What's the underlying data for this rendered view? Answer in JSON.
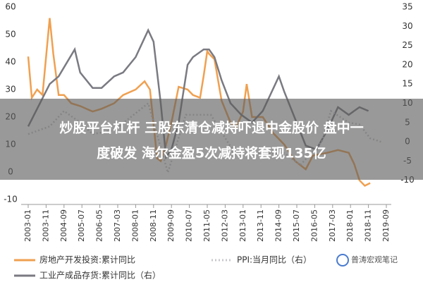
{
  "chart_data": {
    "type": "line",
    "xlim": [
      "2003-01",
      "2019-09"
    ],
    "xticks": [
      "2003-01",
      "2003-11",
      "2004-09",
      "2005-07",
      "2006-05",
      "2007-03",
      "2008-01",
      "2008-11",
      "2009-09",
      "2010-07",
      "2011-05",
      "2012-03",
      "2013-01",
      "2013-11",
      "2014-09",
      "2015-07",
      "2016-05",
      "2017-03",
      "2018-01",
      "2018-11",
      "2019-09"
    ],
    "ylim": [
      -10,
      60
    ],
    "yticks": [
      -10,
      0,
      10,
      20,
      30,
      40,
      50,
      60
    ],
    "y2lim": [
      -15,
      35
    ],
    "y2ticks": [
      -10,
      -5,
      0,
      5,
      10,
      15,
      20,
      25,
      30,
      35
    ],
    "series": [
      {
        "name": "房地产开发投资:累计同比",
        "color": "#f0a050",
        "axis": "y",
        "x": [
          "2003-01",
          "2003-03",
          "2003-06",
          "2003-09",
          "2004-01",
          "2004-03",
          "2004-06",
          "2004-09",
          "2005-01",
          "2005-06",
          "2006-01",
          "2006-06",
          "2007-01",
          "2007-06",
          "2008-01",
          "2008-06",
          "2008-09",
          "2009-01",
          "2009-03",
          "2009-06",
          "2009-09",
          "2010-01",
          "2010-06",
          "2010-09",
          "2011-01",
          "2011-03",
          "2011-05",
          "2011-06",
          "2011-09",
          "2012-01",
          "2012-06",
          "2012-09",
          "2013-01",
          "2013-03",
          "2013-06",
          "2013-12",
          "2014-06",
          "2014-12",
          "2015-06",
          "2015-12",
          "2016-04",
          "2016-12",
          "2017-06",
          "2017-12",
          "2018-03",
          "2018-06",
          "2018-09",
          "2018-12"
        ],
        "values": [
          42,
          27,
          30,
          28,
          56,
          43,
          28,
          28,
          25,
          24,
          22,
          23,
          25,
          28,
          30,
          33,
          30,
          5,
          4,
          10,
          18,
          31,
          30,
          28,
          27,
          35,
          44,
          43,
          41,
          26,
          18,
          16,
          22,
          32,
          20,
          20,
          14,
          10,
          4,
          1,
          6,
          7,
          8,
          7,
          3,
          -3,
          -5,
          -4
        ]
      },
      {
        "name": "工业产成品存货:累计同比（右）",
        "color": "#7a7a82",
        "axis": "y2",
        "x": [
          "2003-01",
          "2004-01",
          "2004-06",
          "2005-03",
          "2005-06",
          "2006-01",
          "2006-06",
          "2007-01",
          "2007-06",
          "2008-01",
          "2008-06",
          "2008-08",
          "2008-11",
          "2009-03",
          "2009-06",
          "2009-09",
          "2010-01",
          "2010-06",
          "2010-09",
          "2011-03",
          "2011-06",
          "2011-09",
          "2012-01",
          "2012-06",
          "2012-12",
          "2013-06",
          "2013-12",
          "2014-06",
          "2014-09",
          "2014-12",
          "2015-06",
          "2015-12",
          "2016-06",
          "2016-12",
          "2017-06",
          "2017-12",
          "2018-03",
          "2018-06",
          "2018-11"
        ],
        "values": [
          4,
          15,
          17,
          24,
          18,
          14,
          14,
          17,
          18,
          22,
          27,
          29,
          26,
          10,
          -4,
          -2,
          5,
          20,
          22,
          24,
          24,
          22,
          16,
          10,
          7,
          5,
          8,
          14,
          17,
          13,
          6,
          -1,
          -2,
          3,
          9,
          7,
          8,
          9,
          8
        ]
      },
      {
        "name": "PPI:当月同比（右）",
        "color": "#c8c8cc",
        "axis": "y2",
        "dash": "2,3",
        "x": [
          "2003-01",
          "2004-01",
          "2004-09",
          "2005-06",
          "2006-01",
          "2007-01",
          "2008-08",
          "2009-07",
          "2010-05",
          "2011-07",
          "2012-09",
          "2013-06",
          "2014-12",
          "2015-09",
          "2016-09",
          "2017-02",
          "2017-12",
          "2018-06",
          "2018-12",
          "2019-06"
        ],
        "values": [
          2,
          4,
          8,
          5,
          2,
          3,
          10,
          -8,
          7,
          7,
          -3.5,
          -3,
          -3,
          -6,
          0,
          8,
          5,
          4.5,
          0.9,
          0
        ]
      }
    ]
  },
  "headline": [
    "炒股平台杠杆 三股东清仓减持吓退中金股价 盘中一",
    "度破发 海尔金盈5次减持将套现135亿"
  ],
  "watermark": "普涛宏观笔记"
}
